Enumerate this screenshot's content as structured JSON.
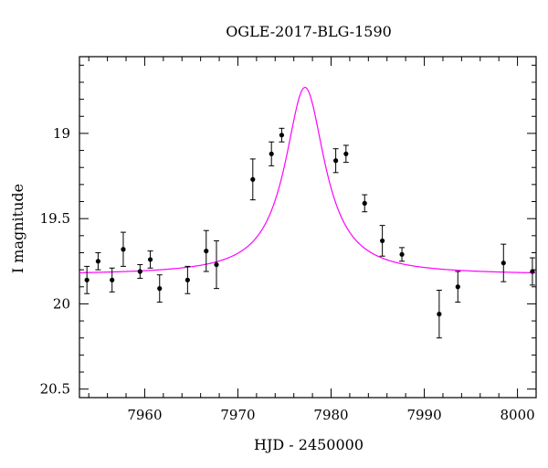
{
  "chart_data": {
    "type": "scatter",
    "title": "OGLE-2017-BLG-1590",
    "xlabel": "HJD - 2450000",
    "ylabel": "I magnitude",
    "xlim": [
      7953,
      8002
    ],
    "ylim": [
      20.55,
      18.55
    ],
    "y_inverted": true,
    "grid": false,
    "x_ticks": [
      "7960",
      "7970",
      "7980",
      "7990",
      "8000"
    ],
    "y_ticks": [
      "19",
      "19.5",
      "20",
      "20.5"
    ],
    "model_color": "#ff00ff",
    "point_color": "#000000",
    "model": {
      "t0": 7977.2,
      "baseline": 19.83,
      "peak": 18.73,
      "tE": 2.6
    },
    "points": [
      {
        "x": 7953.8,
        "y": 19.86,
        "err": 0.08
      },
      {
        "x": 7955.0,
        "y": 19.75,
        "err": 0.05
      },
      {
        "x": 7956.5,
        "y": 19.86,
        "err": 0.07
      },
      {
        "x": 7957.7,
        "y": 19.68,
        "err": 0.1
      },
      {
        "x": 7959.5,
        "y": 19.81,
        "err": 0.04
      },
      {
        "x": 7960.6,
        "y": 19.74,
        "err": 0.05
      },
      {
        "x": 7961.6,
        "y": 19.91,
        "err": 0.08
      },
      {
        "x": 7964.6,
        "y": 19.86,
        "err": 0.08
      },
      {
        "x": 7966.6,
        "y": 19.69,
        "err": 0.12
      },
      {
        "x": 7967.7,
        "y": 19.77,
        "err": 0.14
      },
      {
        "x": 7971.6,
        "y": 19.27,
        "err": 0.12
      },
      {
        "x": 7973.6,
        "y": 19.12,
        "err": 0.07
      },
      {
        "x": 7974.7,
        "y": 19.01,
        "err": 0.04
      },
      {
        "x": 7980.5,
        "y": 19.16,
        "err": 0.07
      },
      {
        "x": 7981.6,
        "y": 19.12,
        "err": 0.05
      },
      {
        "x": 7983.6,
        "y": 19.41,
        "err": 0.05
      },
      {
        "x": 7985.5,
        "y": 19.63,
        "err": 0.09
      },
      {
        "x": 7987.6,
        "y": 19.71,
        "err": 0.04
      },
      {
        "x": 7991.6,
        "y": 20.06,
        "err": 0.14
      },
      {
        "x": 7993.6,
        "y": 19.9,
        "err": 0.09
      },
      {
        "x": 7998.5,
        "y": 19.76,
        "err": 0.11
      },
      {
        "x": 8001.6,
        "y": 19.81,
        "err": 0.08
      }
    ]
  }
}
